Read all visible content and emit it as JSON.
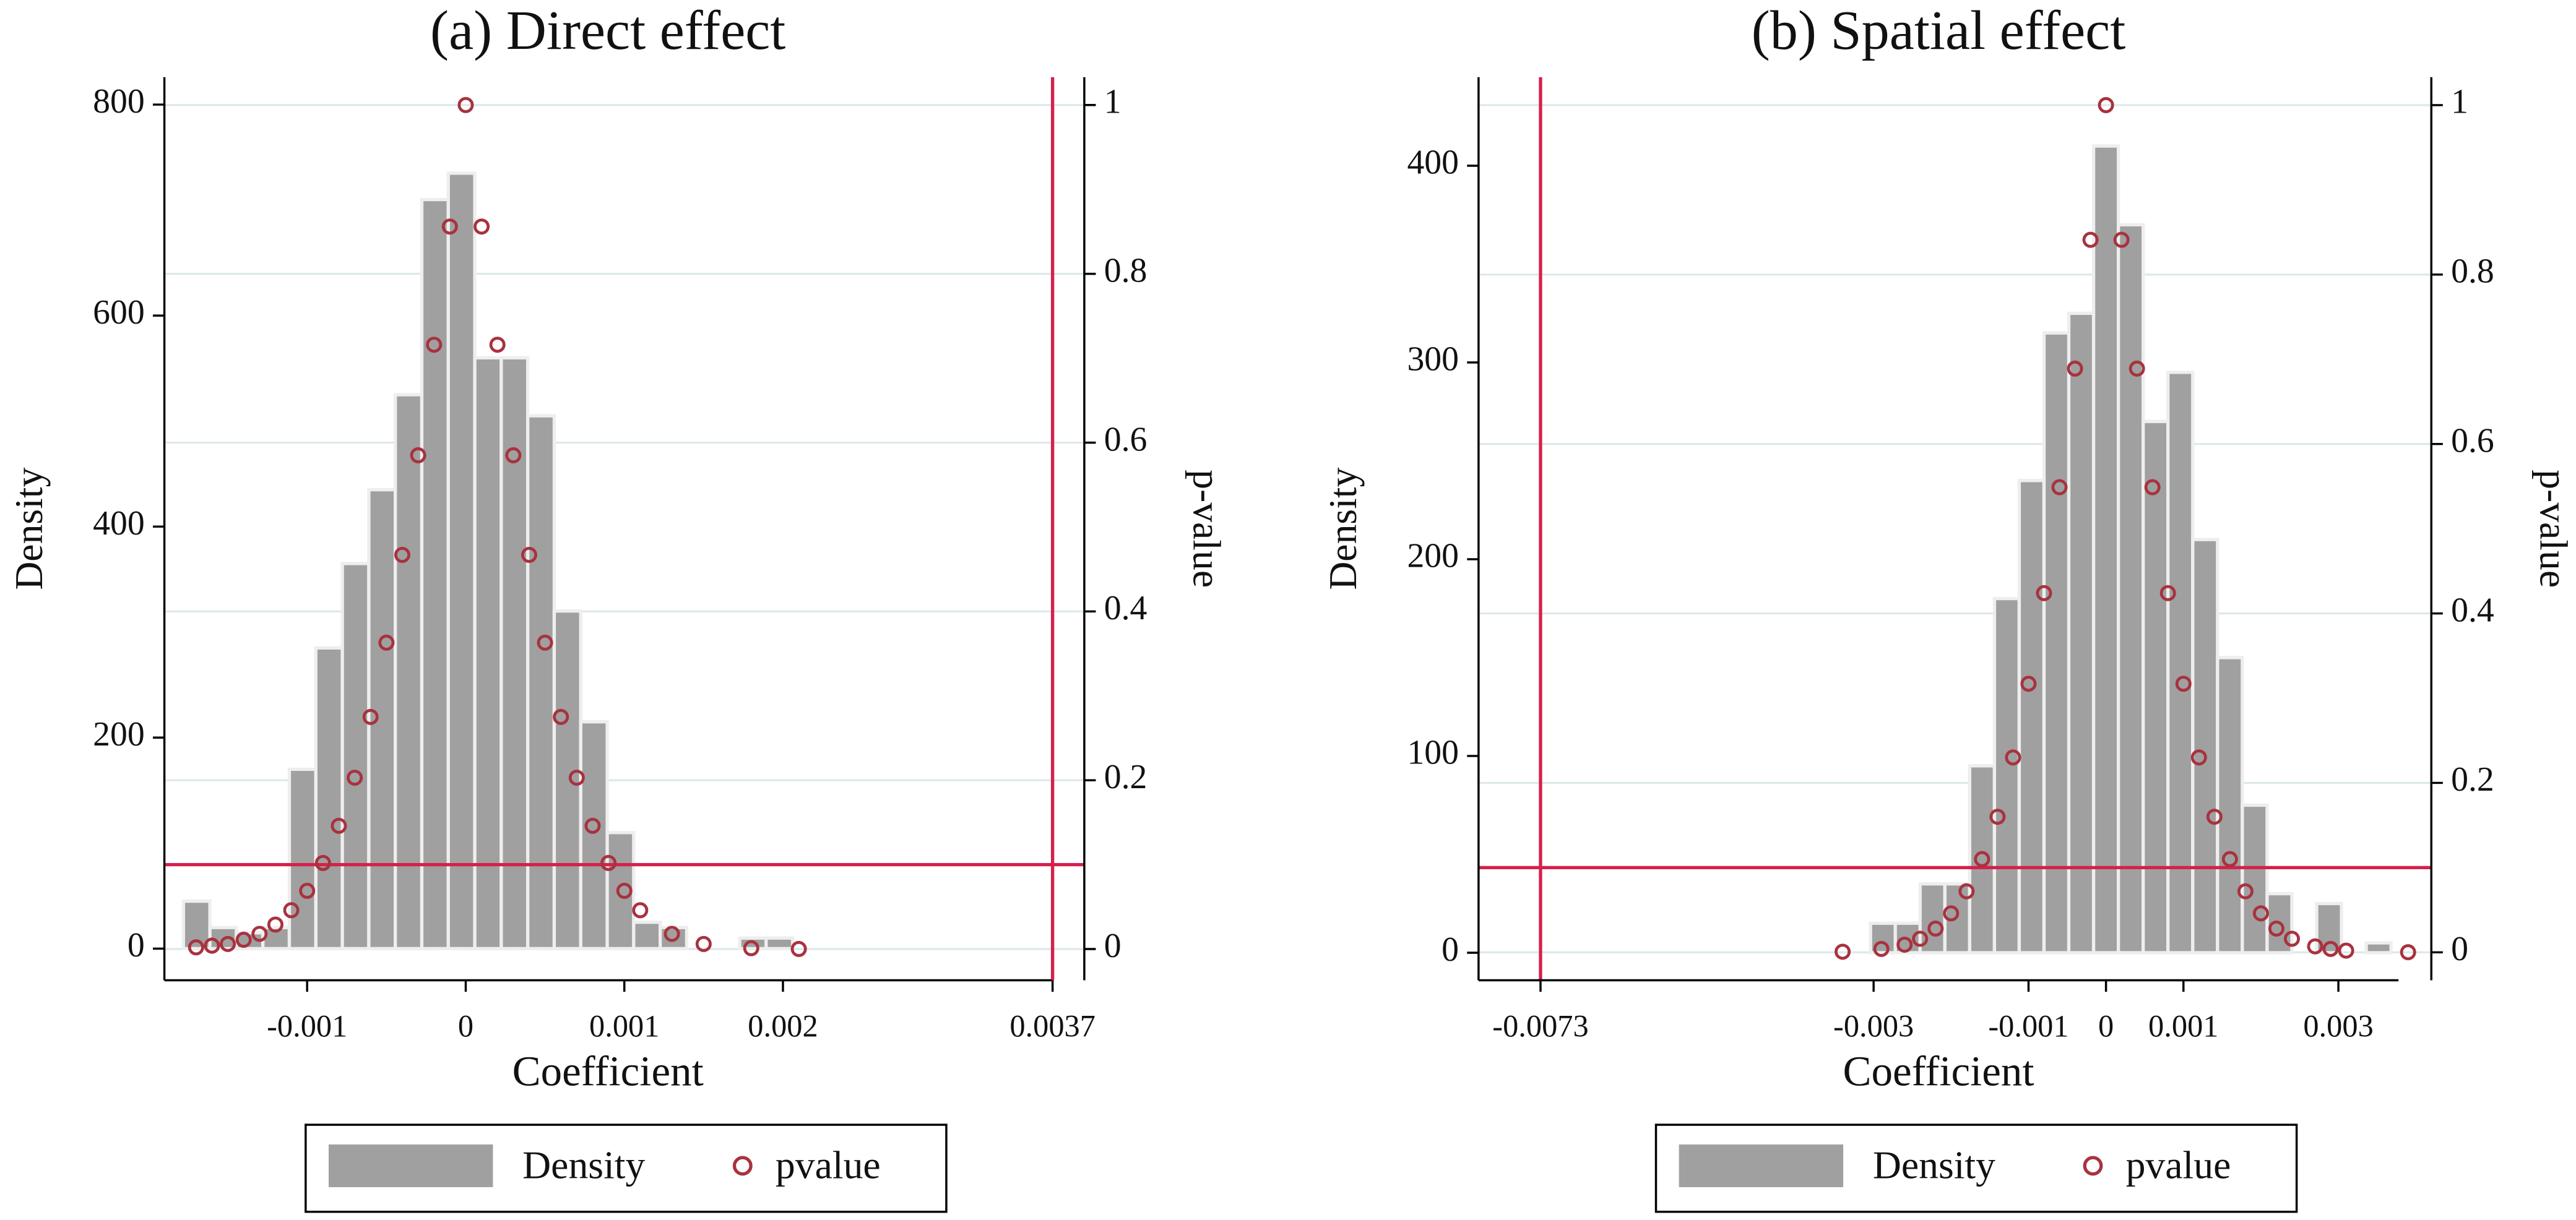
{
  "chart_data": [
    {
      "type": "histogram",
      "title": "(a) Direct effect",
      "xlabel": "Coefficient",
      "ylabel": "Density",
      "y2label": "p-value",
      "bins": [
        -0.00178,
        -0.001613,
        -0.001446,
        -0.001279,
        -0.001112,
        -0.000945,
        -0.000778,
        -0.000611,
        -0.000444,
        -0.000277,
        -0.00011,
        5.7e-05,
        0.000224,
        0.000391,
        0.000558,
        0.000725,
        0.000892,
        0.001059,
        0.001226,
        0.001393,
        0.00156,
        0.001727,
        0.001894,
        0.002061
      ],
      "series": [
        {
          "name": "Density",
          "color": "#a0a0a0",
          "values": [
            45,
            20,
            15,
            20,
            170,
            285,
            365,
            435,
            525,
            710,
            735,
            560,
            560,
            505,
            320,
            215,
            110,
            25,
            20,
            0,
            0,
            10,
            10
          ]
        },
        {
          "name": "pvalue",
          "type": "scatter",
          "axis": "y2",
          "color": "#a8323e",
          "x": [
            -0.0017,
            -0.0016,
            -0.0015,
            -0.0014,
            -0.0013,
            -0.0012,
            -0.0011,
            -0.001,
            -0.0009,
            -0.0008,
            -0.0007,
            -0.0006,
            -0.0005,
            -0.0004,
            -0.0003,
            -0.0002,
            -0.0001,
            0,
            0.0001,
            0.0002,
            0.0003,
            0.0004,
            0.0005,
            0.0006,
            0.0007,
            0.0008,
            0.0009,
            0.001,
            0.0011,
            0.0013,
            0.0015,
            0.0018,
            0.0021
          ],
          "values": [
            0.002,
            0.004,
            0.006,
            0.011,
            0.018,
            0.029,
            0.046,
            0.069,
            0.102,
            0.146,
            0.203,
            0.275,
            0.363,
            0.467,
            0.585,
            0.716,
            0.856,
            1,
            0.856,
            0.716,
            0.585,
            0.467,
            0.363,
            0.275,
            0.203,
            0.146,
            0.102,
            0.069,
            0.046,
            0.018,
            0.006,
            0.001,
            0.0001
          ]
        }
      ],
      "xline": 0.0037,
      "y2line": 0.1,
      "line_color": "#d6204c",
      "xlim": [
        -0.0019,
        0.0039
      ],
      "ylim": [
        -30,
        826
      ],
      "y2lim": [
        -0.037,
        1.033
      ],
      "xticks": [
        -0.001,
        0,
        0.001,
        0.002,
        0.0037
      ],
      "yticks": [
        0,
        200,
        400,
        600,
        800
      ],
      "y2ticks": [
        0,
        0.2,
        0.4,
        0.6,
        0.8,
        1
      ],
      "grid": true
    },
    {
      "type": "histogram",
      "title": "(b) Spatial effect",
      "xlabel": "Coefficient",
      "ylabel": "Density",
      "y2label": "p-value",
      "bins": [
        -0.00304,
        -0.00272,
        -0.0024,
        -0.00208,
        -0.00176,
        -0.00144,
        -0.00112,
        -0.0008,
        -0.00048,
        -0.00016,
        0.00016,
        0.00048,
        0.0008,
        0.00112,
        0.00144,
        0.00176,
        0.00208,
        0.0024,
        0.00272,
        0.00304,
        0.00336,
        0.00368
      ],
      "series": [
        {
          "name": "Density",
          "color": "#a0a0a0",
          "values": [
            15,
            15,
            35,
            35,
            95,
            180,
            240,
            315,
            325,
            410,
            370,
            270,
            295,
            210,
            150,
            75,
            30,
            0,
            25,
            0,
            5
          ]
        },
        {
          "name": "pvalue",
          "type": "scatter",
          "axis": "y2",
          "color": "#a8323e",
          "x": [
            -0.0034,
            -0.0029,
            -0.0026,
            -0.0024,
            -0.0022,
            -0.002,
            -0.0018,
            -0.0016,
            -0.0014,
            -0.0012,
            -0.001,
            -0.0008,
            -0.0006,
            -0.0004,
            -0.0002,
            0,
            0.0002,
            0.0004,
            0.0006,
            0.0008,
            0.001,
            0.0012,
            0.0014,
            0.0016,
            0.0018,
            0.002,
            0.0022,
            0.0024,
            0.0027,
            0.0029,
            0.0031,
            0.0039
          ],
          "values": [
            0.0007,
            0.004,
            0.009,
            0.016,
            0.028,
            0.046,
            0.072,
            0.11,
            0.16,
            0.23,
            0.317,
            0.424,
            0.549,
            0.689,
            0.841,
            1,
            0.841,
            0.689,
            0.549,
            0.424,
            0.317,
            0.23,
            0.16,
            0.11,
            0.072,
            0.046,
            0.028,
            0.016,
            0.007,
            0.004,
            0.002,
            0.0001
          ]
        }
      ],
      "xline": -0.0073,
      "y2line": 0.1,
      "line_color": "#d6204c",
      "xlim": [
        -0.0081,
        0.0042
      ],
      "ylim": [
        -14,
        445
      ],
      "y2lim": [
        -0.033,
        1.033
      ],
      "xticks": [
        -0.0073,
        -0.003,
        -0.001,
        0,
        0.001,
        0.003
      ],
      "yticks": [
        0,
        100,
        200,
        300,
        400
      ],
      "y2ticks": [
        0,
        0.2,
        0.4,
        0.6,
        0.8,
        1
      ],
      "grid": true
    }
  ]
}
